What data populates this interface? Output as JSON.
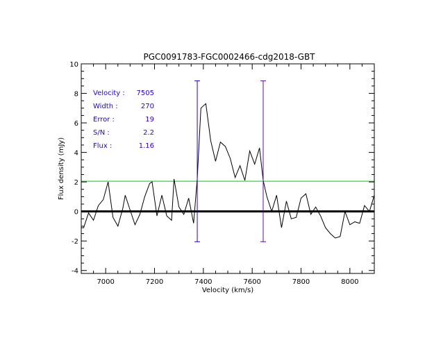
{
  "chart_data": {
    "type": "line",
    "title": "PGC0091783-FGC0002466-cdg2018-GBT",
    "xlabel": "Velocity (km/s)",
    "ylabel": "Flux density (mJy)",
    "xlim": [
      6900,
      8100
    ],
    "ylim": [
      -4.2,
      10
    ],
    "xticks": [
      7000,
      7200,
      7400,
      7600,
      7800,
      8000
    ],
    "xtick_labels": [
      "7000",
      "7200",
      "7400",
      "7600",
      "7800",
      "8000"
    ],
    "yticks": [
      -4,
      -2,
      0,
      2,
      4,
      6,
      8,
      10
    ],
    "ytick_labels": [
      "-4",
      "-2",
      "0",
      "2",
      "4",
      "6",
      "8",
      "10"
    ],
    "series": [
      {
        "name": "spectrum",
        "color": "#000000",
        "x": [
          6900,
          6910,
          6930,
          6950,
          6970,
          6990,
          7010,
          7030,
          7050,
          7070,
          7080,
          7100,
          7120,
          7140,
          7160,
          7180,
          7190,
          7210,
          7230,
          7250,
          7270,
          7280,
          7300,
          7320,
          7340,
          7360,
          7375,
          7390,
          7410,
          7430,
          7450,
          7470,
          7490,
          7510,
          7530,
          7550,
          7570,
          7590,
          7610,
          7630,
          7645,
          7660,
          7680,
          7700,
          7720,
          7740,
          7760,
          7780,
          7800,
          7820,
          7840,
          7860,
          7880,
          7900,
          7920,
          7940,
          7960,
          7980,
          8000,
          8020,
          8040,
          8060,
          8080,
          8100
        ],
        "y": [
          -1.1,
          -1.1,
          -0.1,
          -0.6,
          0.4,
          0.8,
          2.0,
          -0.4,
          -1.0,
          0.2,
          1.1,
          0.1,
          -0.9,
          -0.2,
          1.0,
          1.9,
          2.0,
          -0.3,
          1.1,
          -0.3,
          -0.6,
          2.2,
          0.3,
          -0.2,
          0.9,
          -0.8,
          2.2,
          7.0,
          7.3,
          4.8,
          3.4,
          4.7,
          4.4,
          3.6,
          2.3,
          3.1,
          2.1,
          4.1,
          3.2,
          4.3,
          2.1,
          1.0,
          0.0,
          1.1,
          -1.1,
          0.7,
          -0.5,
          -0.4,
          0.9,
          1.2,
          -0.2,
          0.3,
          -0.3,
          -1.1,
          -1.5,
          -1.8,
          -1.7,
          0.0,
          -0.9,
          -0.7,
          -0.8,
          0.4,
          0.0,
          1.1
        ]
      }
    ],
    "hlines": [
      {
        "name": "zero-baseline",
        "y": 0,
        "color": "#000000"
      },
      {
        "name": "threshold-line",
        "y": 2.05,
        "color": "#00cc00"
      }
    ],
    "vlines": [
      {
        "name": "left-edge-marker",
        "x": 7375,
        "ymin": -2.05,
        "ymax": 8.85,
        "color": "#2a00c8"
      },
      {
        "name": "right-edge-marker",
        "x": 7645,
        "ymin": -2.05,
        "ymax": 8.85,
        "color": "#5a10a0"
      }
    ],
    "annotations": [
      {
        "label": "Velocity :",
        "value": "7505"
      },
      {
        "label": "Width :",
        "value": "270"
      },
      {
        "label": "Error :",
        "value": "19"
      },
      {
        "label": "S/N :",
        "value": "2.2"
      },
      {
        "label": "Flux :",
        "value": "1.16"
      }
    ]
  }
}
